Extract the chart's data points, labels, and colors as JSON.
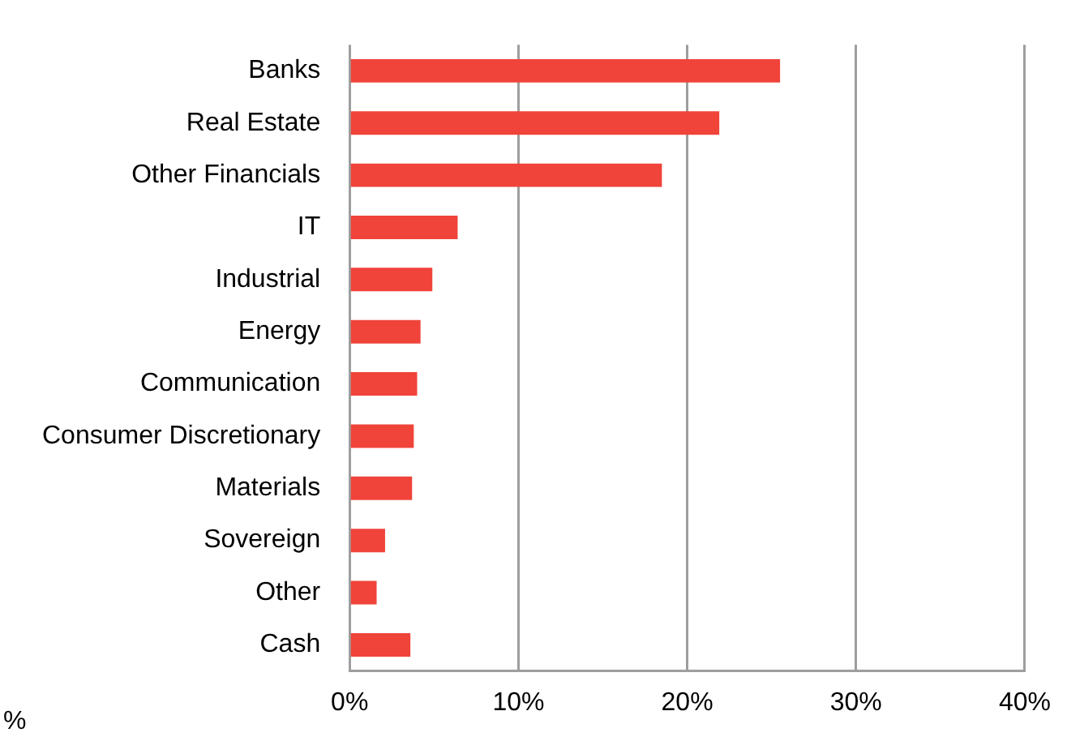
{
  "chart_data": {
    "type": "bar",
    "orientation": "horizontal",
    "xlabel": "%",
    "categories": [
      "Banks",
      "Real Estate",
      "Other Financials",
      "IT",
      "Industrial",
      "Energy",
      "Communication",
      "Consumer Discretionary",
      "Materials",
      "Sovereign",
      "Other",
      "Cash"
    ],
    "values": [
      25.5,
      21.9,
      18.5,
      6.4,
      4.9,
      4.2,
      4.0,
      3.8,
      3.7,
      2.1,
      1.6,
      3.6
    ],
    "color": "#f0433a",
    "xlim": [
      0,
      40
    ],
    "xticks": [
      {
        "value": 0,
        "label": "0%"
      },
      {
        "value": 10,
        "label": "10%"
      },
      {
        "value": 20,
        "label": "20%"
      },
      {
        "value": 30,
        "label": "30%"
      },
      {
        "value": 40,
        "label": "40%"
      }
    ],
    "grid": "x",
    "legend": false
  }
}
